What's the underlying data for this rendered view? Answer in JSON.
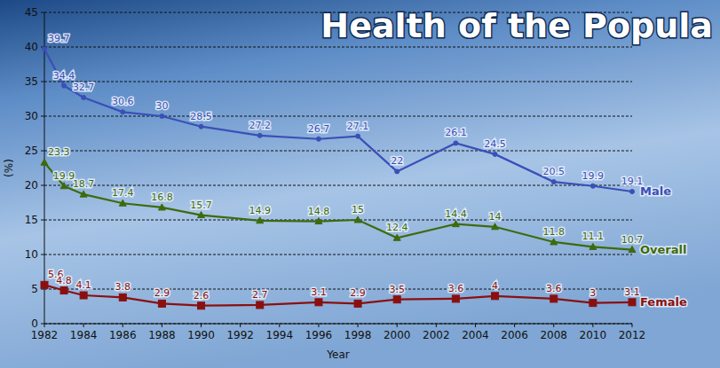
{
  "chart_data": {
    "type": "line",
    "title": "Health of the Popula",
    "x_label": "Year",
    "y_label": "(%)",
    "x": [
      1982,
      1983,
      1984,
      1986,
      1988,
      1990,
      1993,
      1996,
      1998,
      2000,
      2003,
      2005,
      2008,
      2010,
      2012
    ],
    "series": [
      {
        "name": "Male",
        "color": "#3a4fb8",
        "marker": "circle",
        "values": [
          39.7,
          34.4,
          32.7,
          30.6,
          30.0,
          28.5,
          27.2,
          26.7,
          27.1,
          22.0,
          26.1,
          24.5,
          20.5,
          19.9,
          19.1
        ]
      },
      {
        "name": "Overall",
        "color": "#3d6b0c",
        "marker": "triangle",
        "values": [
          23.3,
          19.9,
          18.7,
          17.4,
          16.8,
          15.7,
          14.9,
          14.8,
          15.0,
          12.4,
          14.4,
          14.0,
          11.8,
          11.1,
          10.7
        ]
      },
      {
        "name": "Female",
        "color": "#8a1010",
        "marker": "square",
        "values": [
          5.6,
          4.8,
          4.1,
          3.8,
          2.9,
          2.6,
          2.7,
          3.1,
          2.9,
          3.5,
          3.6,
          4.0,
          3.6,
          3.0,
          3.1
        ]
      }
    ],
    "xlim": [
      1982,
      2012
    ],
    "xticks": [
      1982,
      1984,
      1986,
      1988,
      1990,
      1992,
      1994,
      1996,
      1998,
      2000,
      2002,
      2004,
      2006,
      2008,
      2010,
      2012
    ],
    "ylim": [
      0,
      45
    ],
    "yticks": [
      0,
      5,
      10,
      15,
      20,
      25,
      30,
      35,
      40,
      45
    ],
    "grid": true,
    "data_labels": true
  }
}
